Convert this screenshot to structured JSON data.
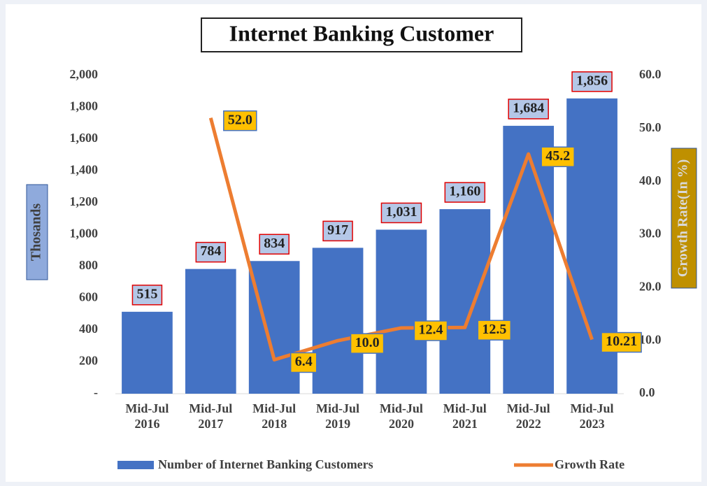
{
  "chart_data": {
    "type": "bar",
    "title": "Internet Banking Customer",
    "y_label": "Thosands",
    "y2_label": "Growth Rate(In %)",
    "categories": [
      "Mid-Jul 2016",
      "Mid-Jul 2017",
      "Mid-Jul 2018",
      "Mid-Jul 2019",
      "Mid-Jul 2020",
      "Mid-Jul 2021",
      "Mid-Jul 2022",
      "Mid-Jul 2023"
    ],
    "series": [
      {
        "name": "Number of Internet Banking Customers",
        "type": "bar",
        "color": "#4472c4",
        "values": [
          515,
          784,
          834,
          917,
          1031,
          1160,
          1684,
          1856
        ],
        "value_labels": [
          "515",
          "784",
          "834",
          "917",
          "1,031",
          "1,160",
          "1,684",
          "1,856"
        ]
      },
      {
        "name": "Growth Rate",
        "type": "line",
        "axis": "y2",
        "color": "#ed7d31",
        "values": [
          null,
          52.0,
          6.4,
          10.0,
          12.4,
          12.5,
          45.2,
          10.21
        ],
        "value_labels": [
          null,
          "52.0",
          "6.4",
          "10.0",
          "12.4",
          "12.5",
          "45.2",
          "10.21"
        ]
      }
    ],
    "ylim": [
      0,
      2000
    ],
    "yticks": [
      {
        "value": 0,
        "label": "-"
      },
      200,
      400,
      600,
      800,
      {
        "value": 1000,
        "label": "1,000"
      },
      {
        "value": 1200,
        "label": "1,200"
      },
      {
        "value": 1400,
        "label": "1,400"
      },
      {
        "value": 1600,
        "label": "1,600"
      },
      {
        "value": 1800,
        "label": "1,800"
      },
      {
        "value": 2000,
        "label": "2,000"
      }
    ],
    "y2lim": [
      0,
      60
    ],
    "y2ticks": [
      {
        "value": 0,
        "label": "0.0"
      },
      {
        "value": 10,
        "label": "10.0"
      },
      {
        "value": 20,
        "label": "20.0"
      },
      {
        "value": 30,
        "label": "30.0"
      },
      {
        "value": 40,
        "label": "40.0"
      },
      {
        "value": 50,
        "label": "50.0"
      },
      {
        "value": 60,
        "label": "60.0"
      }
    ],
    "grid": false,
    "legend": "bottom"
  }
}
